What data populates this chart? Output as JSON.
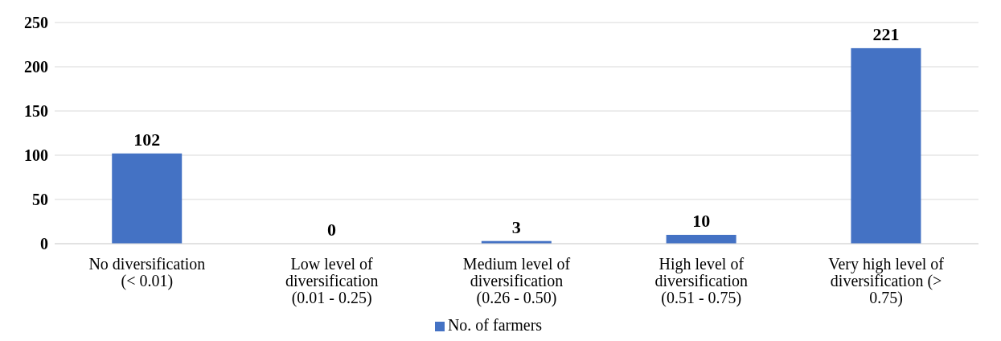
{
  "chart_data": {
    "type": "bar",
    "categories": [
      "No diversification (< 0.01)",
      "Low level of diversification (0.01 - 0.25)",
      "Medium level of diversification (0.26 - 0.50)",
      "High level of diversification (0.51 - 0.75)",
      "Very high level of diversification (> 0.75)"
    ],
    "series": [
      {
        "name": "No. of farmers",
        "color": "#4472c4",
        "values": [
          102,
          0,
          3,
          10,
          221
        ]
      }
    ],
    "ylim": [
      0,
      250
    ],
    "yticks": [
      0,
      50,
      100,
      150,
      200,
      250
    ],
    "grid": "y",
    "legend": "bottom",
    "data_labels": true
  }
}
